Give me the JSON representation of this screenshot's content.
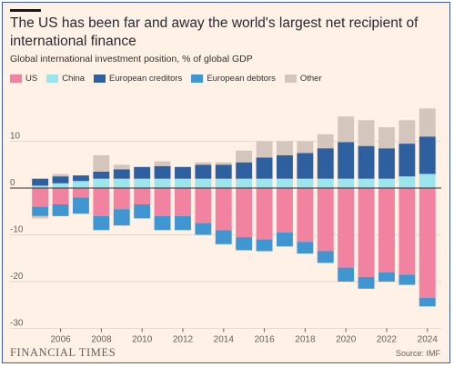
{
  "title": "The US has been far and away the world's largest net recipient of international finance",
  "subtitle": "Global international investment position, % of global GDP",
  "legend": [
    {
      "name": "US",
      "color": "#f283a0"
    },
    {
      "name": "China",
      "color": "#9be6ec"
    },
    {
      "name": "European creditors",
      "color": "#2e5f9f"
    },
    {
      "name": "European debtors",
      "color": "#3f96d1"
    },
    {
      "name": "Other",
      "color": "#d4c6bd"
    }
  ],
  "footer": {
    "brand": "FINANCIAL TIMES",
    "source": "Source: IMF"
  },
  "chart_data": {
    "type": "bar",
    "stacked": true,
    "title": "The US has been far and away the world's largest net recipient of international finance",
    "subtitle": "Global international investment position, % of global GDP",
    "x": [
      2005,
      2006,
      2007,
      2008,
      2009,
      2010,
      2011,
      2012,
      2013,
      2014,
      2015,
      2016,
      2017,
      2018,
      2019,
      2020,
      2021,
      2022,
      2023,
      2024
    ],
    "x_ticks": [
      2006,
      2008,
      2010,
      2012,
      2014,
      2016,
      2018,
      2020,
      2022,
      2024
    ],
    "y_ticks": [
      10,
      0,
      -10,
      -20,
      -30
    ],
    "ylim": [
      -30,
      17
    ],
    "series": [
      {
        "name": "China",
        "color": "#9be6ec",
        "values": [
          0.5,
          1.0,
          1.5,
          2.0,
          2.0,
          2.0,
          2.0,
          2.0,
          2.0,
          2.0,
          2.0,
          2.0,
          2.0,
          2.0,
          2.0,
          2.0,
          2.0,
          2.0,
          2.5,
          3.0
        ]
      },
      {
        "name": "European creditors",
        "color": "#2e5f9f",
        "values": [
          1.5,
          1.5,
          1.2,
          1.5,
          2.0,
          2.5,
          2.7,
          2.5,
          3.0,
          3.0,
          3.5,
          4.5,
          5.0,
          5.5,
          6.5,
          7.8,
          7.0,
          6.5,
          7.0,
          8.0
        ]
      },
      {
        "name": "Other",
        "color": "#d4c6bd",
        "values": [
          0.0,
          0.5,
          0.0,
          3.5,
          1.0,
          0.0,
          1.0,
          0.0,
          0.5,
          0.5,
          2.5,
          3.5,
          3.0,
          2.5,
          3.0,
          5.5,
          5.5,
          4.5,
          5.0,
          6.0
        ]
      },
      {
        "name": "US",
        "color": "#f283a0",
        "values": [
          -4.0,
          -3.5,
          -2.0,
          -6.0,
          -4.5,
          -3.5,
          -6.0,
          -6.0,
          -7.5,
          -9.0,
          -10.5,
          -11.0,
          -9.5,
          -11.5,
          -13.5,
          -17.0,
          -19.0,
          -18.0,
          -18.5,
          -23.5
        ]
      },
      {
        "name": "European debtors",
        "color": "#3f96d1",
        "values": [
          -2.0,
          -2.5,
          -3.5,
          -3.0,
          -3.5,
          -3.0,
          -3.0,
          -3.0,
          -2.5,
          -3.0,
          -2.8,
          -2.5,
          -3.0,
          -2.5,
          -2.5,
          -3.0,
          -2.5,
          -2.0,
          -2.2,
          -1.8
        ]
      },
      {
        "name": "Other",
        "color": "#d4c6bd",
        "values": [
          -0.5,
          0,
          0,
          0,
          0,
          0,
          0,
          0,
          0,
          0,
          0,
          0,
          0,
          0,
          0,
          0,
          0,
          0,
          0,
          0
        ]
      }
    ]
  }
}
